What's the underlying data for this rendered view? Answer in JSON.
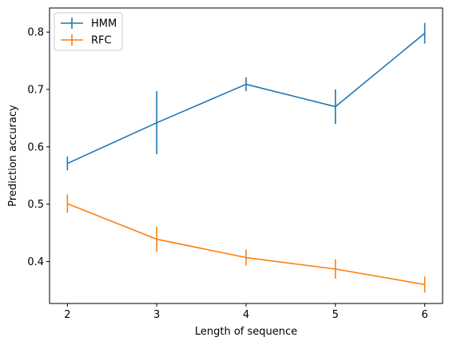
{
  "chart_data": {
    "type": "line",
    "title": "",
    "xlabel": "Length of sequence",
    "ylabel": "Prediction accuracy",
    "x": [
      2,
      3,
      4,
      5,
      6
    ],
    "xlim": [
      1.8,
      6.2
    ],
    "ylim": [
      0.327,
      0.842
    ],
    "xticks": [
      2,
      3,
      4,
      5,
      6
    ],
    "yticks": [
      0.4,
      0.5,
      0.6,
      0.7,
      0.8
    ],
    "xtick_labels": [
      "2",
      "3",
      "4",
      "5",
      "6"
    ],
    "ytick_labels": [
      "0.4",
      "0.5",
      "0.6",
      "0.7",
      "0.8"
    ],
    "grid": false,
    "legend_position": "top-left",
    "series": [
      {
        "name": "HMM",
        "color": "#1f77b4",
        "values": [
          0.571,
          0.642,
          0.709,
          0.67,
          0.798
        ],
        "errors": [
          0.012,
          0.055,
          0.012,
          0.03,
          0.018
        ]
      },
      {
        "name": "RFC",
        "color": "#ff7f0e",
        "values": [
          0.501,
          0.439,
          0.407,
          0.387,
          0.36
        ],
        "errors": [
          0.016,
          0.022,
          0.014,
          0.017,
          0.014
        ]
      }
    ]
  }
}
